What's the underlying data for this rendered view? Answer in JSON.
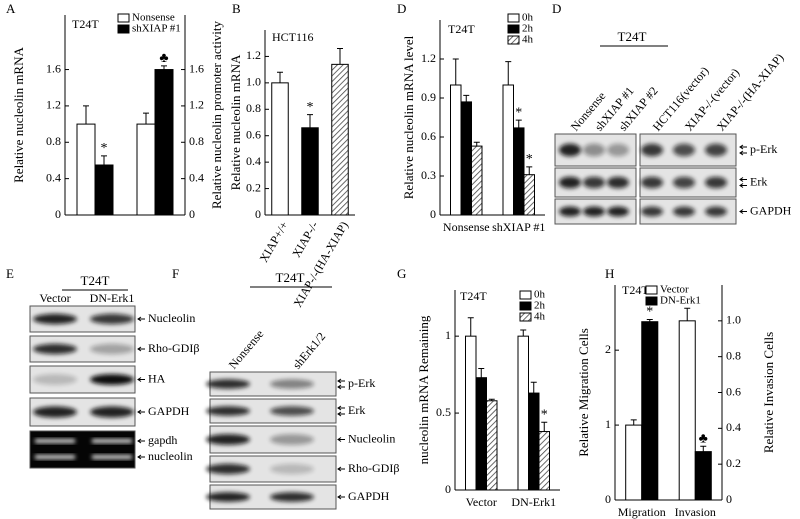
{
  "chart_data": [
    {
      "type": "bar",
      "panel": "A",
      "label": "T24T",
      "categories": [
        null,
        null
      ],
      "category_axes": [
        "y",
        "y2"
      ],
      "series": [
        {
          "name": "Nonsense",
          "color": "#ffffff",
          "values": [
            1.0,
            1.0
          ],
          "errors": [
            0.2,
            0.12
          ],
          "markers": [
            null,
            null
          ]
        },
        {
          "name": "shXIAP #1",
          "color": "#000000",
          "values": [
            0.55,
            1.6
          ],
          "errors": [
            0.1,
            0.04
          ],
          "markers": [
            "*",
            "♣"
          ]
        }
      ],
      "ylabel": "Relative nucleolin  mRNA",
      "y2label": "Relative nucleolin promoter activity",
      "ylim": [
        0,
        2.2
      ],
      "yticks": [
        0,
        0.4,
        0.8,
        1.2,
        1.6
      ],
      "y2lim": [
        0,
        2.2
      ],
      "y2ticks": [
        0,
        0.4,
        0.8,
        1.2,
        1.6
      ]
    },
    {
      "type": "bar",
      "panel": "B",
      "label": "HCT116",
      "categories": [
        "XIAP+/+",
        "XIAP-/-",
        "XIAP-/-(HA-XIAP)"
      ],
      "series": [
        {
          "name": null,
          "colors": [
            "#ffffff",
            "#000000",
            "hatch"
          ],
          "values": [
            1.0,
            0.66,
            1.14
          ],
          "errors": [
            0.08,
            0.1,
            0.12
          ],
          "markers": [
            null,
            "*",
            null
          ]
        }
      ],
      "ylabel": "Relative nucleolin  mRNA",
      "ylim": [
        0,
        1.4
      ],
      "yticks": [
        0,
        0.2,
        0.4,
        0.6,
        0.8,
        {
          "value": 1,
          "label": "1.0"
        },
        1.2
      ]
    },
    {
      "type": "bar",
      "panel": "D",
      "label": "T24T",
      "categories": [
        "Nonsense",
        "shXIAP #1"
      ],
      "series": [
        {
          "name": "0h",
          "color": "#ffffff",
          "values": [
            1.0,
            1.0
          ],
          "errors": [
            0.2,
            0.18
          ],
          "markers": [
            null,
            null
          ]
        },
        {
          "name": "2h",
          "color": "#000000",
          "values": [
            0.87,
            0.67
          ],
          "errors": [
            0.05,
            0.06
          ],
          "markers": [
            null,
            "*"
          ]
        },
        {
          "name": "4h",
          "color": "hatch",
          "values": [
            0.53,
            0.31
          ],
          "errors": [
            0.03,
            0.06
          ],
          "markers": [
            null,
            "*"
          ]
        }
      ],
      "ylabel": "Relative nucleolin mRNA level",
      "ylim": [
        0,
        1.5
      ],
      "yticks": [
        0,
        0.3,
        0.6,
        0.9,
        1.2
      ]
    },
    {
      "type": "bar",
      "panel": "G",
      "label": "T24T",
      "categories": [
        "Vector",
        "DN-Erk1"
      ],
      "series": [
        {
          "name": "0h",
          "color": "#ffffff",
          "values": [
            1.0,
            1.0
          ],
          "errors": [
            0.12,
            0.04
          ],
          "markers": [
            null,
            null
          ]
        },
        {
          "name": "2h",
          "color": "#000000",
          "values": [
            0.73,
            0.63
          ],
          "errors": [
            0.06,
            0.07
          ],
          "markers": [
            null,
            null
          ]
        },
        {
          "name": "4h",
          "color": "hatch",
          "values": [
            0.58,
            0.38
          ],
          "errors": [
            0.01,
            0.06
          ],
          "markers": [
            null,
            "*"
          ]
        }
      ],
      "ylabel": "nucleolin mRNA Remaining",
      "ylim": [
        0,
        1.3
      ],
      "yticks": [
        0,
        0.5,
        1
      ]
    },
    {
      "type": "bar",
      "panel": "H",
      "label": "T24T",
      "categories": [
        "Migration",
        "Invasion"
      ],
      "category_axes": [
        "y",
        "y2"
      ],
      "series": [
        {
          "name": "Vector",
          "color": "#ffffff",
          "values": [
            1.0,
            1.0
          ],
          "errors": [
            0.07,
            0.07
          ],
          "markers": [
            null,
            null
          ]
        },
        {
          "name": "DN-Erk1",
          "color": "#000000",
          "values": [
            2.38,
            0.27
          ],
          "errors": [
            0.03,
            0.03
          ],
          "markers": [
            "*",
            "♣"
          ]
        }
      ],
      "ylabel": "Relative Migration Cells",
      "y2label": "Relative Invasion Cells",
      "ylim": [
        0,
        2.87
      ],
      "yticks": [
        0,
        1,
        2
      ],
      "y2lim": [
        0,
        1.2
      ],
      "y2ticks": [
        0,
        0.2,
        0.4,
        0.6,
        0.8,
        {
          "value": 1,
          "label": "1.0"
        }
      ]
    }
  ],
  "blots": [
    {
      "panel": "D",
      "group_label": "T24T",
      "lanes": [
        "Nonsense",
        "shXIAP #1",
        "shXIAP #2",
        "HCT116(vector)",
        "XIAP-/-(vector)",
        "XIAP-/-(HA-XIAP)"
      ],
      "rows": [
        "p-Erk",
        "Erk",
        "GAPDH"
      ]
    },
    {
      "panel": "E",
      "group_label": "T24T",
      "lanes": [
        "Vector",
        "DN-Erk1"
      ],
      "rows": [
        "Nucleolin",
        "Rho-GDIβ",
        "HA",
        "GAPDH"
      ],
      "gel_labels": [
        "gapdh",
        "nucleolin"
      ]
    },
    {
      "panel": "F",
      "group_label": "T24T",
      "lanes": [
        "Nonsense",
        "shErk1/2"
      ],
      "rows": [
        "p-Erk",
        "Erk",
        "Nucleolin",
        "Rho-GDIβ",
        "GAPDH"
      ]
    }
  ]
}
